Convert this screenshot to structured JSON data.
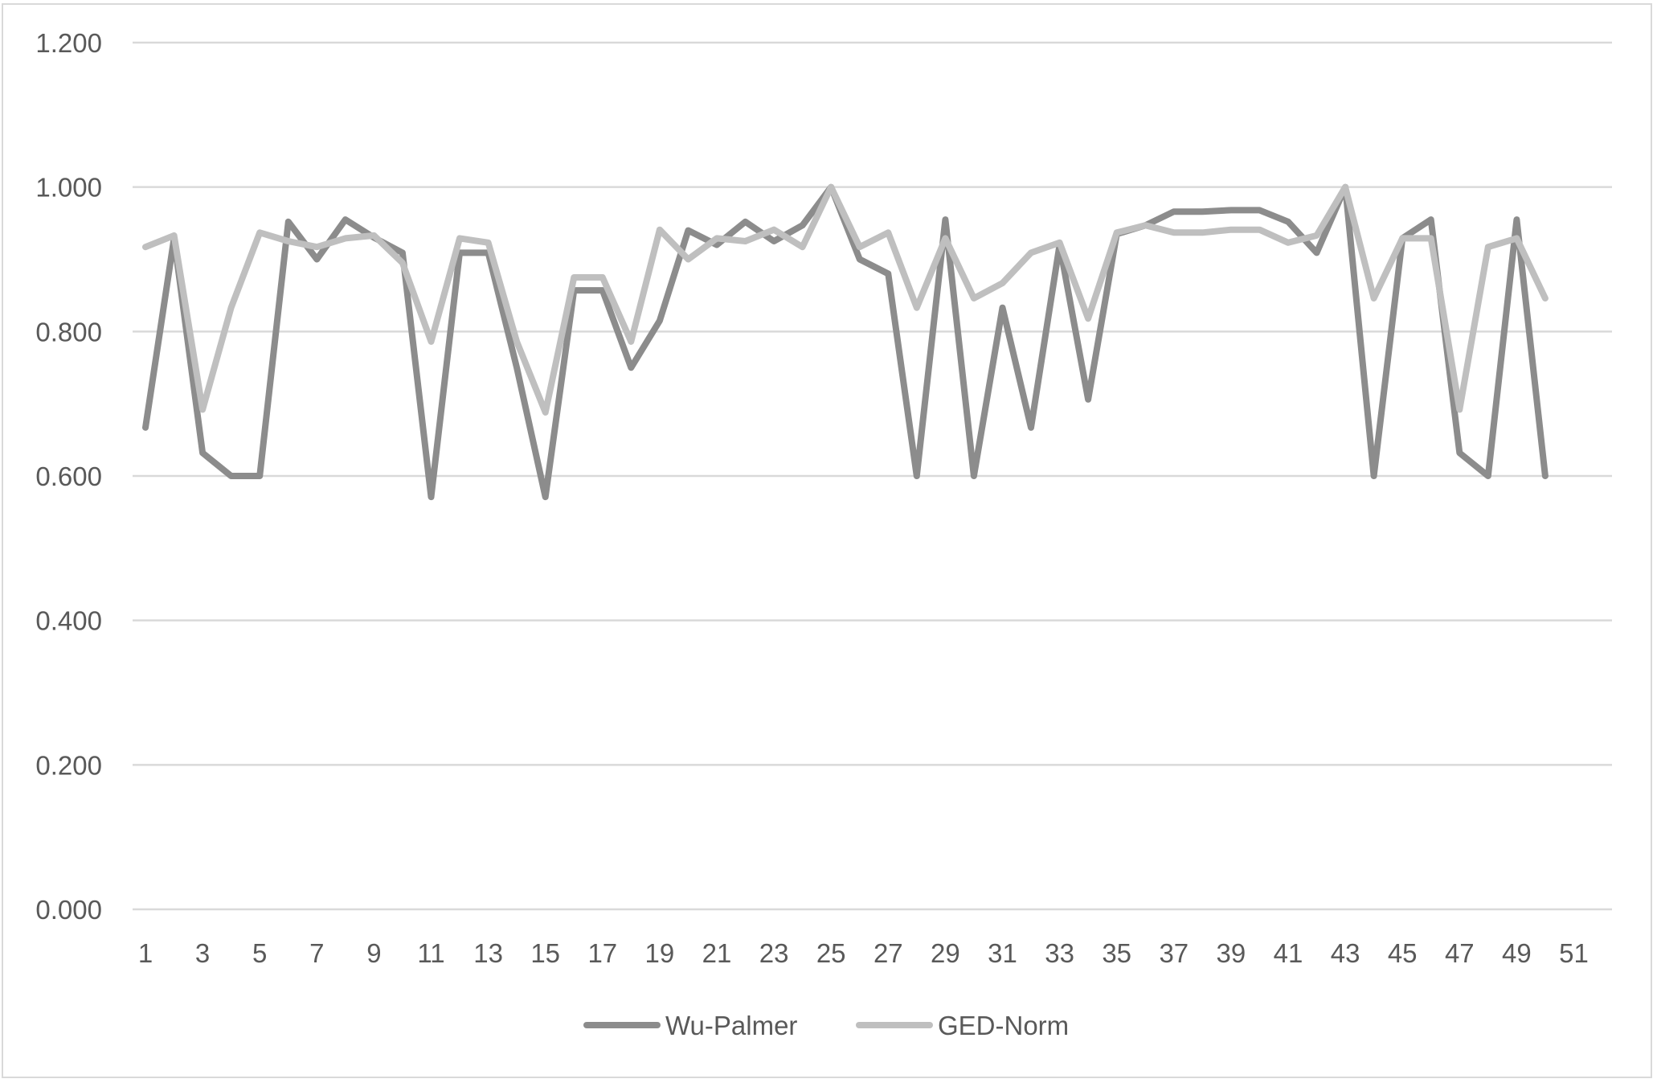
{
  "chart_data": {
    "type": "line",
    "title": "",
    "xlabel": "",
    "ylabel": "",
    "ylim": [
      0,
      1.2
    ],
    "y_ticks": [
      "0.000",
      "0.200",
      "0.400",
      "0.600",
      "0.800",
      "1.000",
      "1.200"
    ],
    "x_ticks": [
      "1",
      "3",
      "5",
      "7",
      "9",
      "11",
      "13",
      "15",
      "17",
      "19",
      "21",
      "23",
      "25",
      "27",
      "29",
      "31",
      "33",
      "35",
      "37",
      "39",
      "41",
      "43",
      "45",
      "47",
      "49",
      "51"
    ],
    "x_range": [
      1,
      51
    ],
    "grid": true,
    "legend_position": "bottom",
    "colors": {
      "Wu-Palmer": "#8c8c8c",
      "GED-Norm": "#bfbfbf"
    },
    "x": [
      1,
      2,
      3,
      4,
      5,
      6,
      7,
      8,
      9,
      10,
      11,
      12,
      13,
      14,
      15,
      16,
      17,
      18,
      19,
      20,
      21,
      22,
      23,
      24,
      25,
      26,
      27,
      28,
      29,
      30,
      31,
      32,
      33,
      34,
      35,
      36,
      37,
      38,
      39,
      40,
      41,
      42,
      43,
      44,
      45,
      46,
      47,
      48,
      49,
      50
    ],
    "series": [
      {
        "name": "Wu-Palmer",
        "values": [
          0.667,
          0.929,
          0.632,
          0.6,
          0.6,
          0.952,
          0.9,
          0.955,
          0.93,
          0.909,
          0.571,
          0.909,
          0.909,
          0.75,
          0.571,
          0.857,
          0.857,
          0.75,
          0.815,
          0.94,
          0.92,
          0.952,
          0.925,
          0.947,
          1.0,
          0.9,
          0.88,
          0.6,
          0.955,
          0.6,
          0.833,
          0.667,
          0.92,
          0.706,
          0.935,
          0.947,
          0.966,
          0.966,
          0.968,
          0.968,
          0.952,
          0.909,
          1.0,
          0.6,
          0.929,
          0.955,
          0.632,
          0.6,
          0.955,
          0.6
        ]
      },
      {
        "name": "GED-Norm",
        "values": [
          0.917,
          0.933,
          0.692,
          0.833,
          0.937,
          0.925,
          0.917,
          0.929,
          0.933,
          0.895,
          0.786,
          0.929,
          0.923,
          0.786,
          0.688,
          0.875,
          0.875,
          0.786,
          0.941,
          0.9,
          0.929,
          0.925,
          0.941,
          0.917,
          1.0,
          0.917,
          0.937,
          0.833,
          0.929,
          0.846,
          0.867,
          0.909,
          0.923,
          0.818,
          0.937,
          0.947,
          0.937,
          0.937,
          0.941,
          0.941,
          0.923,
          0.933,
          1.0,
          0.846,
          0.929,
          0.929,
          0.692,
          0.917,
          0.929,
          0.846
        ]
      }
    ]
  }
}
